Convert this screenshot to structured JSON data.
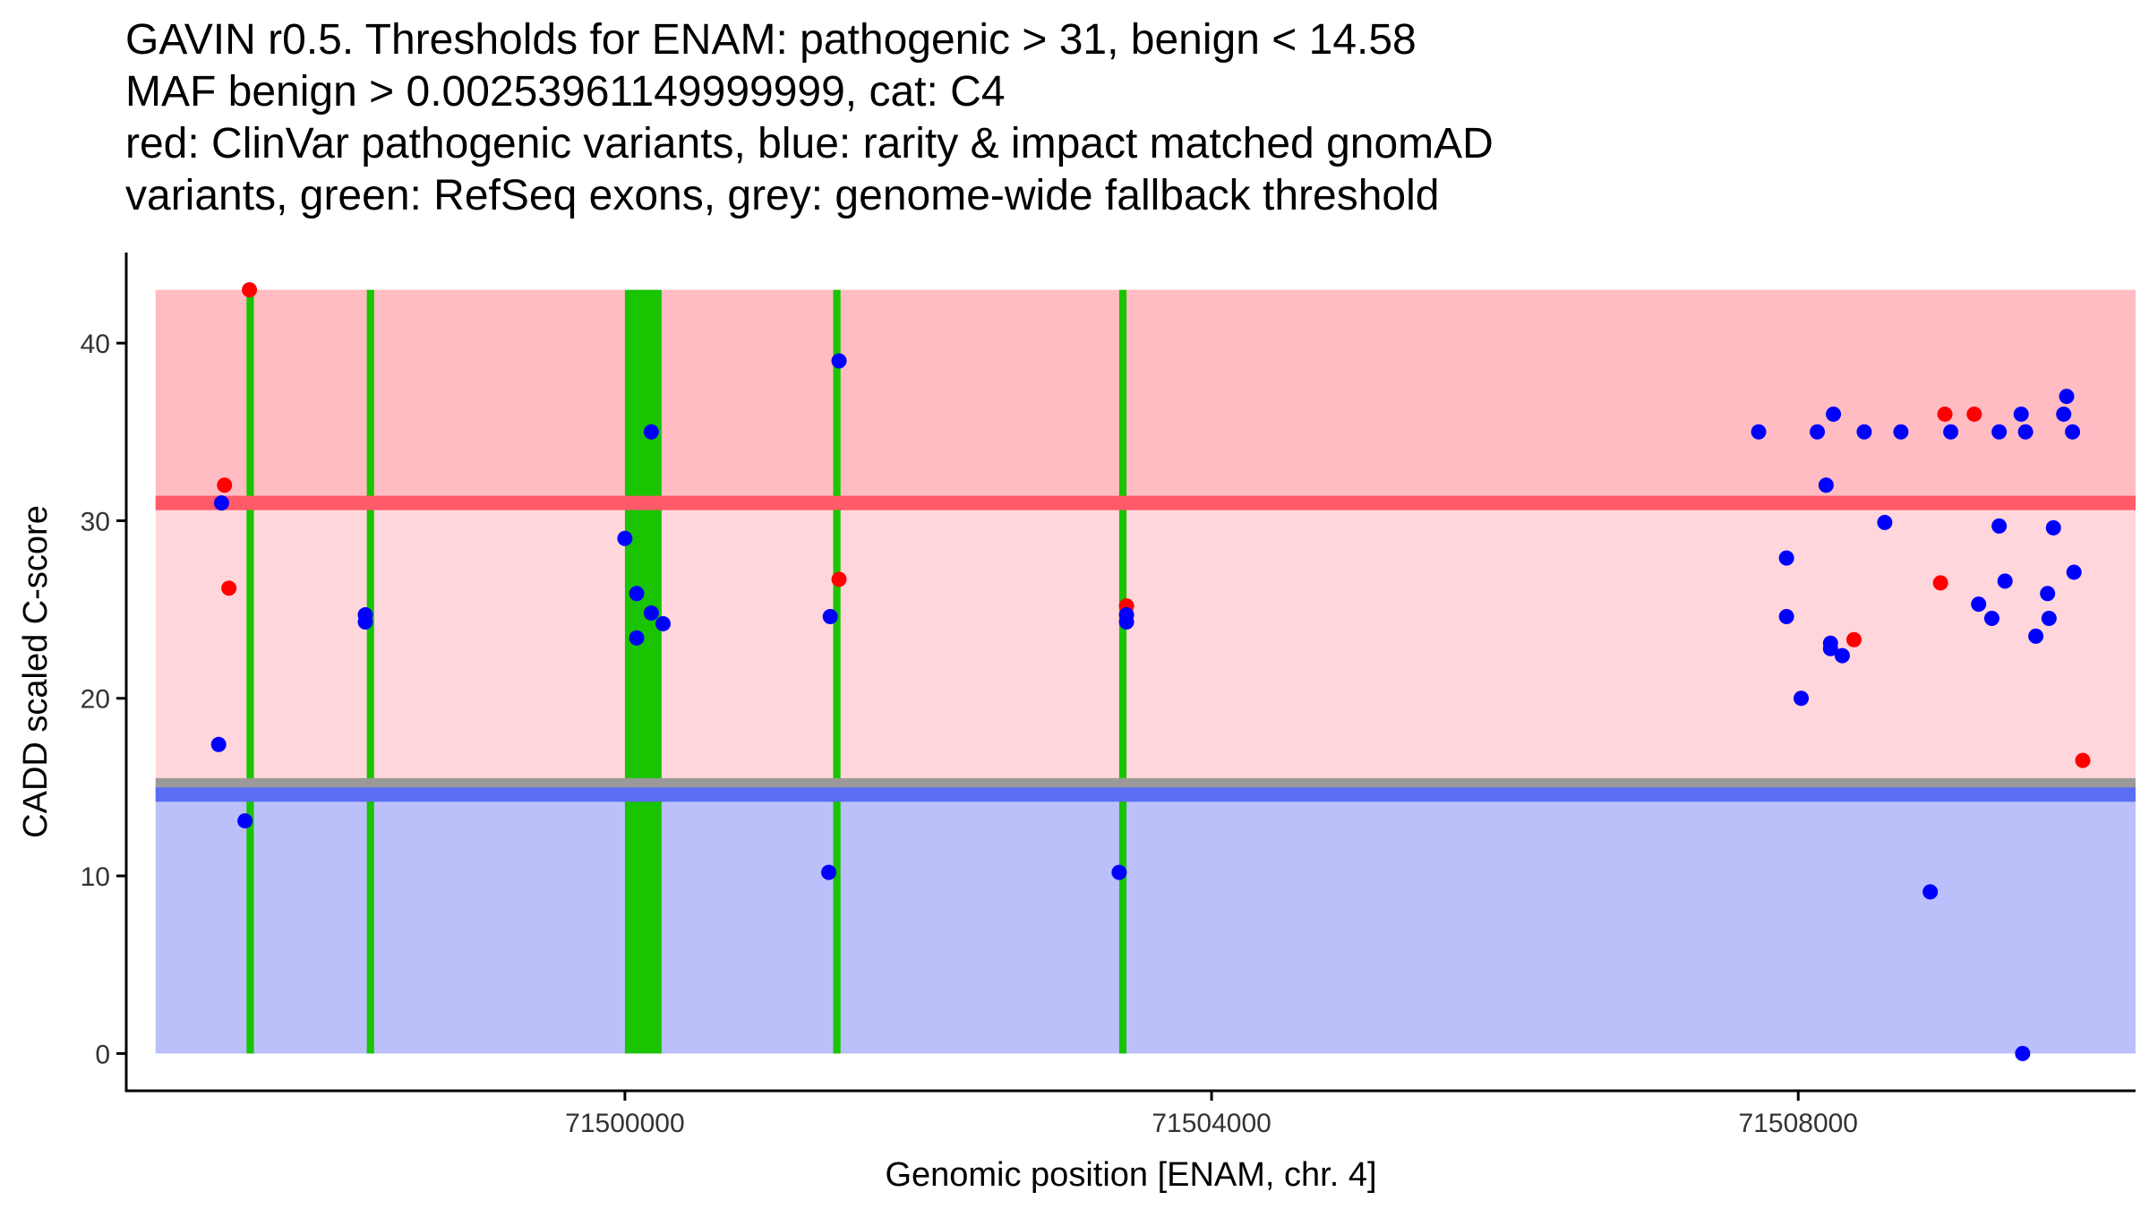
{
  "chart_data": {
    "type": "scatter",
    "title": [
      "GAVIN r0.5. Thresholds for ENAM: pathogenic > 31, benign < 14.58",
      "MAF benign > 0.00253961149999999, cat: C4",
      "red: ClinVar pathogenic variants, blue: rarity & impact matched gnomAD",
      "variants, green: RefSeq exons, grey: genome-wide fallback threshold"
    ],
    "xlabel": "Genomic position [ENAM, chr. 4]",
    "ylabel": "CADD scaled C-score",
    "xlim": [
      71496600,
      71510300
    ],
    "ylim": [
      -2.1,
      45.1
    ],
    "xticks": [
      71500000,
      71504000,
      71508000
    ],
    "xtick_labels": [
      "71500000",
      "71504000",
      "71508000"
    ],
    "yticks": [
      0,
      10,
      20,
      30,
      40
    ],
    "ytick_labels": [
      "0",
      "10",
      "20",
      "30",
      "40"
    ],
    "colors": {
      "pathogenic_band": "#ffbcc2",
      "middle_band": "#ffd6db",
      "benign_band": "#bbc0fb",
      "pathogenic_line": "#ff5a68",
      "benign_line": "#5a6ef4",
      "fallback_line": "#9a9a9a",
      "exon": "#1ac400",
      "pathogenic_point": "#ff0000",
      "gnomad_point": "#0000ff"
    },
    "bands": [
      {
        "name": "pathogenic-band",
        "y0": 31,
        "y1": 43,
        "x0": 71496800,
        "x1": 71510300,
        "color": "#ffbcc2"
      },
      {
        "name": "middle-band",
        "y0": 14.58,
        "y1": 31,
        "x0": 71496800,
        "x1": 71510300,
        "color": "#ffd6db"
      },
      {
        "name": "benign-band",
        "y0": 0,
        "y1": 14.58,
        "x0": 71496800,
        "x1": 71510300,
        "color": "#bbc0fb"
      }
    ],
    "thresholds": [
      {
        "name": "fallback-threshold-line",
        "y": 15.1,
        "color": "#9a9a9a"
      },
      {
        "name": "benign-threshold-line",
        "y": 14.58,
        "color": "#5a6ef4"
      },
      {
        "name": "pathogenic-threshold-line",
        "y": 31,
        "color": "#ff5a68"
      }
    ],
    "exons": [
      {
        "start": 71497420,
        "end": 71497470
      },
      {
        "start": 71498240,
        "end": 71498290
      },
      {
        "start": 71500000,
        "end": 71500250
      },
      {
        "start": 71501420,
        "end": 71501470
      },
      {
        "start": 71503370,
        "end": 71503420
      }
    ],
    "series": [
      {
        "name": "ClinVar pathogenic",
        "color": "#ff0000",
        "points": [
          [
            71497440,
            43
          ],
          [
            71497270,
            32
          ],
          [
            71497300,
            26.2
          ],
          [
            71501460,
            26.7
          ],
          [
            71503420,
            25.2
          ],
          [
            71509000,
            36
          ],
          [
            71509200,
            36
          ],
          [
            71508380,
            23.3
          ],
          [
            71508970,
            26.5
          ],
          [
            71509940,
            16.5
          ]
        ]
      },
      {
        "name": "gnomAD matched",
        "color": "#0000ff",
        "points": [
          [
            71497250,
            31
          ],
          [
            71497230,
            17.4
          ],
          [
            71497410,
            13.1
          ],
          [
            71498230,
            24.7
          ],
          [
            71498230,
            24.3
          ],
          [
            71500000,
            29
          ],
          [
            71500080,
            25.9
          ],
          [
            71500080,
            23.4
          ],
          [
            71500180,
            24.8
          ],
          [
            71500180,
            35
          ],
          [
            71500260,
            24.2
          ],
          [
            71501460,
            39
          ],
          [
            71501400,
            24.6
          ],
          [
            71501390,
            10.2
          ],
          [
            71503420,
            24.7
          ],
          [
            71503420,
            24.3
          ],
          [
            71503370,
            10.2
          ],
          [
            71507730,
            35
          ],
          [
            71507920,
            27.9
          ],
          [
            71507920,
            24.6
          ],
          [
            71508020,
            20
          ],
          [
            71508130,
            35
          ],
          [
            71508190,
            32
          ],
          [
            71508240,
            36
          ],
          [
            71508220,
            23.1
          ],
          [
            71508220,
            22.8
          ],
          [
            71508300,
            22.4
          ],
          [
            71508450,
            35
          ],
          [
            71508590,
            29.9
          ],
          [
            71508700,
            35
          ],
          [
            71508900,
            9.1
          ],
          [
            71509040,
            35
          ],
          [
            71509230,
            25.3
          ],
          [
            71509320,
            24.5
          ],
          [
            71509370,
            35
          ],
          [
            71509370,
            29.7
          ],
          [
            71509410,
            26.6
          ],
          [
            71509520,
            36
          ],
          [
            71509550,
            35
          ],
          [
            71509620,
            23.5
          ],
          [
            71509700,
            25.9
          ],
          [
            71509710,
            24.5
          ],
          [
            71509740,
            29.6
          ],
          [
            71509810,
            36
          ],
          [
            71509830,
            37
          ],
          [
            71509870,
            35
          ],
          [
            71509880,
            27.1
          ],
          [
            71509530,
            0
          ]
        ]
      }
    ]
  }
}
